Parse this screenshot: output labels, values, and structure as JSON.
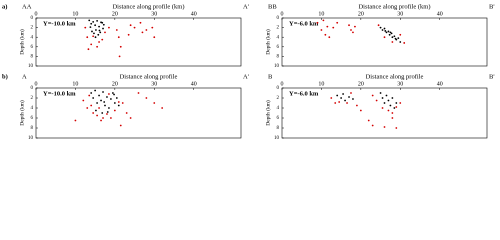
{
  "chart_data": [
    {
      "type": "scatter",
      "panel_label": "a)",
      "start_label": "AA",
      "end_label": "A'",
      "annotation": "Y=-10.0 km",
      "xlabel": "Distance along profile (km)",
      "ylabel": "Depth (km)",
      "xlim": [
        0,
        52
      ],
      "ylim": [
        0,
        10
      ],
      "y_inverted": true,
      "xticks": [
        0,
        10,
        20,
        30,
        40
      ],
      "yticks": [
        0,
        2,
        4,
        6,
        8,
        10
      ],
      "series": [
        {
          "color": "#000000",
          "x": [
            13.5,
            14,
            14.5,
            15,
            15.2,
            15.5,
            16,
            16.3,
            16.8,
            17,
            14.2,
            15.8,
            16.5,
            13.8,
            15.1,
            16.1,
            17.2,
            14.7
          ],
          "values": [
            0.5,
            1.2,
            0.8,
            1.5,
            2.5,
            0.6,
            1.8,
            3,
            1,
            2.2,
            2.8,
            3.5,
            0.9,
            1.9,
            4,
            2.6,
            1.4,
            3.2
          ]
        },
        {
          "color": "#d40000",
          "x": [
            12.5,
            13,
            14,
            15.5,
            16.8,
            17.5,
            18.5,
            14.5,
            16,
            13.3,
            20.5,
            21,
            21.5,
            21.2,
            24,
            25,
            26.5,
            27,
            28,
            29.5,
            30,
            23.5
          ],
          "values": [
            2,
            4,
            5.5,
            6,
            4.5,
            3,
            2,
            3.8,
            5,
            6.5,
            2.5,
            4,
            6,
            8,
            1.5,
            2,
            1,
            3,
            2.5,
            2,
            4,
            3.5
          ]
        }
      ]
    },
    {
      "type": "scatter",
      "start_label": "BB",
      "end_label": "B'",
      "annotation": "Y=-6.0 km",
      "xlabel": "Distance along profile (km)",
      "ylabel": "Depth (km)",
      "xlim": [
        0,
        52
      ],
      "ylim": [
        0,
        10
      ],
      "y_inverted": true,
      "xticks": [
        0,
        10,
        20,
        30,
        40
      ],
      "yticks": [
        0,
        2,
        4,
        6,
        8,
        10
      ],
      "series": [
        {
          "color": "#000000",
          "x": [
            25,
            25.5,
            26,
            26.5,
            27,
            27.3,
            27.8,
            28,
            28.5,
            29,
            29.5,
            30,
            26.2,
            27.5,
            28.8
          ],
          "values": [
            2,
            2.5,
            2.2,
            3,
            2.8,
            3.5,
            3.2,
            4,
            3.8,
            4.5,
            4.2,
            5,
            2.7,
            3,
            4.3
          ]
        },
        {
          "color": "#d40000",
          "x": [
            9,
            10,
            10.5,
            11,
            11.5,
            12,
            13,
            14,
            17,
            17.5,
            18,
            18.5,
            24.5,
            26,
            28,
            30,
            31
          ],
          "values": [
            1,
            2.5,
            0.5,
            3.5,
            1.8,
            4,
            2,
            1,
            1.5,
            2.5,
            3,
            1.8,
            1.5,
            4,
            5,
            3.5,
            5.2
          ]
        }
      ]
    },
    {
      "type": "scatter",
      "panel_label": "b)",
      "start_label": "A",
      "end_label": "A'",
      "annotation": "Y=-10.0 km",
      "xlabel": "Distance along profile",
      "ylabel": "Depth (km)",
      "xlim": [
        0,
        52
      ],
      "ylim": [
        0,
        10
      ],
      "y_inverted": true,
      "xticks": [
        0,
        10,
        20,
        30,
        40
      ],
      "yticks": [
        0,
        2,
        4,
        6,
        8,
        10
      ],
      "series": [
        {
          "color": "#000000",
          "x": [
            14,
            14.5,
            15,
            15.5,
            16,
            16.5,
            17,
            17.5,
            18,
            18.5,
            19,
            19.5,
            20,
            15.2,
            16.8,
            18.2,
            19.8,
            17.3,
            20.5,
            21
          ],
          "values": [
            1,
            2,
            0.5,
            3,
            1.5,
            2.5,
            0.8,
            3.5,
            1.8,
            4,
            2.2,
            1,
            3,
            4.5,
            5,
            4.8,
            1.3,
            2.8,
            2,
            3.5
          ]
        },
        {
          "color": "#d40000",
          "x": [
            12,
            13,
            13.5,
            14.5,
            15.5,
            16,
            17,
            18,
            19,
            20,
            21,
            22,
            23,
            16.5,
            18.5,
            14,
            10,
            26,
            28,
            30,
            32,
            24,
            21.5
          ],
          "values": [
            2.5,
            4,
            1.5,
            5,
            5.5,
            4,
            6,
            5.2,
            6,
            4.5,
            2.8,
            3,
            5,
            6.5,
            1.2,
            3.5,
            6.5,
            1,
            2,
            3,
            4,
            6,
            7.5
          ]
        }
      ]
    },
    {
      "type": "scatter",
      "start_label": "B",
      "end_label": "B'",
      "annotation": "Y=-6.0 km",
      "xlabel": "Distance along profile",
      "ylabel": "Depth (km)",
      "xlim": [
        0,
        52
      ],
      "ylim": [
        0,
        10
      ],
      "y_inverted": true,
      "xticks": [
        0,
        10,
        20,
        30,
        40
      ],
      "yticks": [
        0,
        2,
        4,
        6,
        8,
        10
      ],
      "series": [
        {
          "color": "#000000",
          "x": [
            14,
            15,
            15.5,
            16,
            17,
            18,
            25,
            25.5,
            26,
            26.5,
            27,
            27.5,
            28,
            28.5,
            29
          ],
          "values": [
            1.5,
            2,
            1.2,
            2.5,
            1.8,
            2.2,
            1,
            2,
            3,
            1.5,
            2.5,
            3.5,
            2,
            4,
            3
          ]
        },
        {
          "color": "#d40000",
          "x": [
            12.5,
            13.5,
            14.5,
            16.5,
            17.5,
            19,
            20,
            23,
            24,
            25.5,
            27,
            28,
            29,
            30,
            22,
            23,
            26,
            28,
            29
          ],
          "values": [
            2,
            3,
            2.8,
            3,
            1,
            3.5,
            4.5,
            1.5,
            2.5,
            4,
            4.5,
            5,
            3.8,
            3,
            6.5,
            7.5,
            7.8,
            6,
            8
          ]
        }
      ]
    }
  ]
}
